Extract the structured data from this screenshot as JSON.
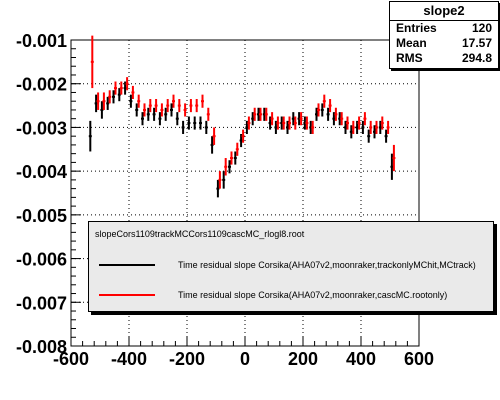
{
  "stats": {
    "title": "slope2",
    "rows": [
      {
        "label": "Entries",
        "value": "120"
      },
      {
        "label": "Mean",
        "value": "17.57"
      },
      {
        "label": "RMS",
        "value": "294.8"
      }
    ]
  },
  "legend": {
    "header": "slopeCors1109trackMCCors1109cascMC_rlogl8.root",
    "entries": [
      {
        "label": "Time residual slope Corsika(AHA07v2,moonraker,trackonlyMChit,MCtrack)",
        "color": "#000000"
      },
      {
        "label": "Time residual slope Corsika(AHA07v2,moonraker,cascMC.rootonly)",
        "color": "#ff0000"
      }
    ]
  },
  "chart_data": {
    "type": "scatter",
    "title": "",
    "xlabel": "",
    "ylabel": "",
    "xlim": [
      -600,
      600
    ],
    "ylim": [
      -0.008,
      -0.001
    ],
    "grid": true,
    "legend_position": "bottom-right",
    "x_ticks": [
      -600,
      -400,
      -200,
      0,
      200,
      400,
      600
    ],
    "x_tick_labels": [
      "-600",
      "-400",
      "-200",
      "0",
      "200",
      "400",
      "600"
    ],
    "y_ticks": [
      -0.008,
      -0.007,
      -0.006,
      -0.005,
      -0.004,
      -0.003,
      -0.002,
      -0.001
    ],
    "y_tick_labels": [
      "-0.008",
      "-0.007",
      "-0.006",
      "-0.005",
      "-0.004",
      "-0.003",
      "-0.002",
      "-0.001"
    ],
    "x": [
      -530,
      -510,
      -490,
      -470,
      -450,
      -430,
      -410,
      -390,
      -370,
      -350,
      -330,
      -310,
      -290,
      -270,
      -250,
      -230,
      -210,
      -190,
      -170,
      -150,
      -130,
      -110,
      -90,
      -70,
      -50,
      -30,
      -10,
      10,
      30,
      50,
      70,
      90,
      110,
      130,
      150,
      170,
      190,
      210,
      230,
      250,
      270,
      290,
      310,
      330,
      350,
      370,
      390,
      410,
      430,
      450,
      470,
      490,
      510
    ],
    "series": [
      {
        "name": "Time residual slope Corsika(AHA07v2,moonraker,trackonlyMChit,MCtrack)",
        "color": "#000000",
        "y": [
          -0.0032,
          -0.00245,
          -0.0026,
          -0.00245,
          -0.0023,
          -0.00225,
          -0.0021,
          -0.0024,
          -0.0026,
          -0.0028,
          -0.0027,
          -0.0027,
          -0.0028,
          -0.0027,
          -0.0026,
          -0.0028,
          -0.003,
          -0.0029,
          -0.0029,
          -0.0029,
          -0.003,
          -0.0034,
          -0.0044,
          -0.0042,
          -0.0039,
          -0.0037,
          -0.0033,
          -0.003,
          -0.0028,
          -0.0027,
          -0.0027,
          -0.0029,
          -0.003,
          -0.0029,
          -0.003,
          -0.0028,
          -0.0028,
          -0.0029,
          -0.003,
          -0.0027,
          -0.0026,
          -0.0027,
          -0.0028,
          -0.0028,
          -0.003,
          -0.0031,
          -0.003,
          -0.003,
          -0.0032,
          -0.0031,
          -0.003,
          -0.0032,
          -0.0039
        ],
        "err": [
          0.00035,
          0.0002,
          0.0002,
          0.00015,
          0.00015,
          0.00015,
          0.00015,
          0.00015,
          0.00015,
          0.00015,
          0.00015,
          0.00015,
          0.00015,
          0.00015,
          0.00015,
          0.00015,
          0.00015,
          0.00015,
          0.00015,
          0.00015,
          0.00015,
          0.0002,
          0.0002,
          0.0002,
          0.00015,
          0.00015,
          0.00015,
          0.00015,
          0.00015,
          0.00015,
          0.00015,
          0.00015,
          0.00015,
          0.00015,
          0.00015,
          0.00015,
          0.00015,
          0.00015,
          0.00015,
          0.00015,
          0.00015,
          0.00015,
          0.00015,
          0.00015,
          0.00015,
          0.00015,
          0.00015,
          0.00015,
          0.00015,
          0.00015,
          0.00015,
          0.00015,
          0.0003
        ]
      },
      {
        "name": "Time residual slope Corsika(AHA07v2,moonraker,cascMC.rootonly)",
        "color": "#ff0000",
        "y": [
          -0.0015,
          -0.0024,
          -0.0024,
          -0.0023,
          -0.0021,
          -0.0021,
          -0.002,
          -0.0022,
          -0.0024,
          -0.0026,
          -0.0025,
          -0.0025,
          -0.0026,
          -0.0025,
          -0.0024,
          -0.0025,
          -0.0026,
          -0.0025,
          -0.0025,
          -0.0024,
          -0.0027,
          -0.0032,
          -0.0042,
          -0.0039,
          -0.0037,
          -0.0035,
          -0.0032,
          -0.0029,
          -0.0027,
          -0.0027,
          -0.0027,
          -0.0028,
          -0.0029,
          -0.0029,
          -0.0029,
          -0.0029,
          -0.0028,
          -0.0029,
          -0.003,
          -0.0026,
          -0.0024,
          -0.0025,
          -0.0027,
          -0.0028,
          -0.0029,
          -0.003,
          -0.0029,
          -0.0028,
          -0.003,
          -0.003,
          -0.0029,
          -0.003,
          -0.0037
        ],
        "err": [
          0.0006,
          0.0002,
          0.0002,
          0.00015,
          0.00015,
          0.00015,
          0.00015,
          0.00015,
          0.00015,
          0.00015,
          0.00015,
          0.00015,
          0.00015,
          0.00015,
          0.00015,
          0.00015,
          0.00015,
          0.00015,
          0.00015,
          0.00015,
          0.00015,
          0.0002,
          0.0002,
          0.0002,
          0.00015,
          0.00015,
          0.00015,
          0.00015,
          0.00015,
          0.00015,
          0.00015,
          0.00015,
          0.00015,
          0.00015,
          0.00015,
          0.00015,
          0.00015,
          0.00015,
          0.00015,
          0.00015,
          0.00015,
          0.00015,
          0.00015,
          0.00015,
          0.00015,
          0.00015,
          0.00015,
          0.00015,
          0.00015,
          0.00015,
          0.00015,
          0.00015,
          0.0003
        ]
      }
    ]
  }
}
